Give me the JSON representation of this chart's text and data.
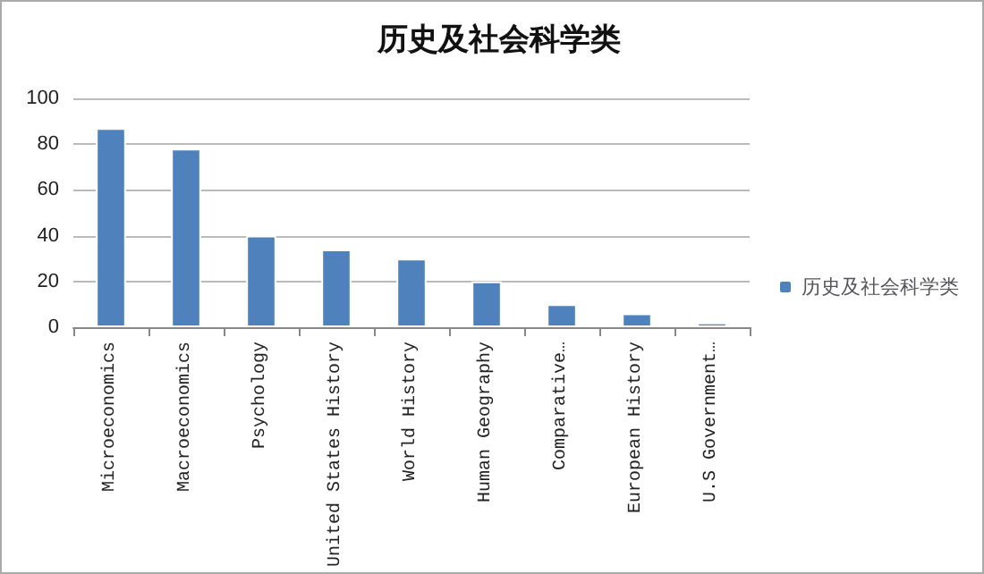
{
  "chart_data": {
    "type": "bar",
    "title": "历史及社会科学类",
    "categories": [
      "Microeconomics",
      "Macroeconomics",
      "Psychology",
      "United States History",
      "World History",
      "Human Geography",
      "Comparative…",
      "European History",
      "U.S Government…"
    ],
    "series": [
      {
        "name": "历史及社会科学类",
        "color": "#4f81bd",
        "values": [
          87,
          78,
          40,
          34,
          30,
          20,
          10,
          6,
          2
        ]
      }
    ],
    "ylim": [
      0,
      100
    ],
    "yticks": [
      0,
      20,
      40,
      60,
      80,
      100
    ],
    "grid": "y",
    "legend": "right"
  }
}
